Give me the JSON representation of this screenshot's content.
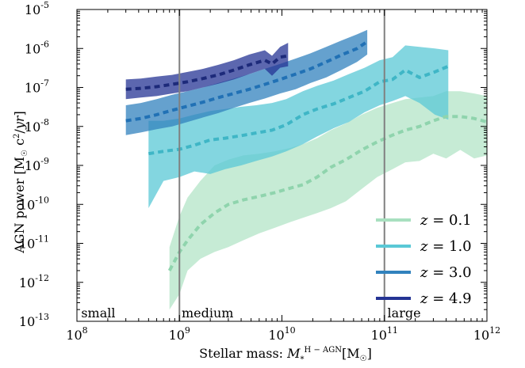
{
  "chart_data": {
    "type": "area",
    "xlabel": "Stellar mass: M*^{H−AGN} [M☉]",
    "ylabel": "AGN power [M☉ c²/yr]",
    "x_scale": "log",
    "y_scale": "log",
    "xlim": [
      100000000.0,
      1000000000000.0
    ],
    "ylim": [
      1e-13,
      1e-05
    ],
    "x_ticks": [
      {
        "value": 100000000.0,
        "base": "10",
        "exp": "8"
      },
      {
        "value": 1000000000.0,
        "base": "10",
        "exp": "9"
      },
      {
        "value": 10000000000.0,
        "base": "10",
        "exp": "10"
      },
      {
        "value": 100000000000.0,
        "base": "10",
        "exp": "11"
      },
      {
        "value": 1000000000000.0,
        "base": "10",
        "exp": "12"
      }
    ],
    "y_ticks": [
      {
        "value": 1e-13,
        "base": "10",
        "exp": "-13"
      },
      {
        "value": 1e-12,
        "base": "10",
        "exp": "-12"
      },
      {
        "value": 1e-11,
        "base": "10",
        "exp": "-11"
      },
      {
        "value": 1e-10,
        "base": "10",
        "exp": "-10"
      },
      {
        "value": 1e-09,
        "base": "10",
        "exp": "-9"
      },
      {
        "value": 1e-08,
        "base": "10",
        "exp": "-8"
      },
      {
        "value": 1e-07,
        "base": "10",
        "exp": "-7"
      },
      {
        "value": 1e-06,
        "base": "10",
        "exp": "-6"
      },
      {
        "value": 1e-05,
        "base": "10",
        "exp": "-5"
      }
    ],
    "vlines": [
      1000000000.0,
      100000000000.0
    ],
    "region_labels": [
      {
        "text": "small",
        "x": 110000000.0
      },
      {
        "text": "medium",
        "x": 1050000000.0
      },
      {
        "text": "large",
        "x": 107000000000.0
      }
    ],
    "legend_placement": "lower-right",
    "series": [
      {
        "name": "z = 0.1",
        "color": "#a8e0bf",
        "x": [
          800000000.0,
          1000000000.0,
          1200000000.0,
          1600000000.0,
          2200000000.0,
          3000000000.0,
          4200000000.0,
          6000000000.0,
          8500000000.0,
          12000000000.0,
          16000000000.0,
          22000000000.0,
          30000000000.0,
          42000000000.0,
          60000000000.0,
          85000000000.0,
          120000000000.0,
          160000000000.0,
          220000000000.0,
          300000000000.0,
          400000000000.0,
          550000000000.0,
          750000000000.0,
          1000000000000.0
        ],
        "y": [
          2e-12,
          6e-12,
          1.2e-11,
          3e-11,
          6e-11,
          1e-10,
          1.3e-10,
          1.6e-10,
          2e-10,
          2.6e-10,
          3.2e-10,
          5e-10,
          9e-10,
          1.4e-09,
          2.5e-09,
          4e-09,
          6e-09,
          8e-09,
          1e-08,
          1.4e-08,
          1.8e-08,
          1.8e-08,
          1.6e-08,
          1.3e-08
        ],
        "lower": [
          2e-13,
          5e-13,
          2e-12,
          4e-12,
          6e-12,
          8e-12,
          1.2e-11,
          1.8e-11,
          2.5e-11,
          3.5e-11,
          4.5e-11,
          6e-11,
          8e-11,
          1.2e-10,
          2.5e-10,
          5e-10,
          8e-10,
          1.2e-09,
          1.3e-09,
          2e-09,
          1.5e-09,
          2.5e-09,
          1.5e-09,
          1.8e-09
        ],
        "upper": [
          8e-12,
          5e-11,
          1.5e-10,
          4e-10,
          1e-09,
          1.4e-09,
          1.8e-09,
          2e-09,
          2.3e-09,
          2.8e-09,
          3.5e-09,
          5e-09,
          8e-09,
          1.2e-08,
          2e-08,
          3e-08,
          4e-08,
          5e-08,
          5.5e-08,
          6e-08,
          8e-08,
          8e-08,
          7e-08,
          6e-08
        ]
      },
      {
        "name": "z = 1.0",
        "color": "#5ac8d6",
        "x": [
          500000000.0,
          700000000.0,
          1000000000.0,
          1400000000.0,
          2000000000.0,
          2800000000.0,
          4000000000.0,
          5600000000.0,
          8000000000.0,
          11000000000.0,
          16000000000.0,
          22000000000.0,
          32000000000.0,
          45000000000.0,
          64000000000.0,
          90000000000.0,
          120000000000.0,
          160000000000.0,
          220000000000.0,
          310000000000.0,
          420000000000.0
        ],
        "y": [
          2e-09,
          2.3e-09,
          2.6e-09,
          3.3e-09,
          4.5e-09,
          5e-09,
          5.8e-09,
          6.8e-09,
          8e-09,
          1.1e-08,
          2e-08,
          2.8e-08,
          3.8e-08,
          5.5e-08,
          8e-08,
          1.4e-07,
          1.6e-07,
          2.8e-07,
          1.8e-07,
          2.5e-07,
          3.5e-07
        ],
        "lower": [
          8e-11,
          4e-10,
          5e-10,
          7e-10,
          6e-10,
          8e-10,
          1e-09,
          1.3e-09,
          1.7e-09,
          2.3e-09,
          3.5e-09,
          5.5e-09,
          9e-09,
          1.3e-08,
          2.3e-08,
          3.5e-08,
          4.5e-08,
          6e-08,
          4e-08,
          2e-08,
          1.5e-08
        ],
        "upper": [
          1.4e-08,
          1.4e-08,
          1.6e-08,
          2e-08,
          2.5e-08,
          2.8e-08,
          3.2e-08,
          3.5e-08,
          4e-08,
          5e-08,
          8e-08,
          1.1e-07,
          1.5e-07,
          2.2e-07,
          3.2e-07,
          5e-07,
          6e-07,
          1.2e-06,
          1.1e-06,
          1e-06,
          9e-07
        ]
      },
      {
        "name": "z = 3.0",
        "color": "#3182bd",
        "x": [
          300000000.0,
          420000000.0,
          600000000.0,
          850000000.0,
          1200000000.0,
          1700000000.0,
          2400000000.0,
          3400000000.0,
          4800000000.0,
          6800000000.0,
          9600000000.0,
          13600000000.0,
          19000000000.0,
          27000000000.0,
          38000000000.0,
          54000000000.0,
          68000000000.0
        ],
        "y": [
          1.4e-08,
          1.6e-08,
          2e-08,
          2.6e-08,
          3.3e-08,
          4.2e-08,
          5.5e-08,
          7e-08,
          9e-08,
          1.2e-07,
          1.6e-07,
          2.2e-07,
          3e-07,
          4.5e-07,
          6.8e-07,
          1e-06,
          1.5e-06
        ],
        "lower": [
          6e-09,
          7e-09,
          8.5e-09,
          1e-08,
          1.3e-08,
          1.7e-08,
          2.2e-08,
          3e-08,
          4e-08,
          5.2e-08,
          7e-08,
          9e-08,
          1.3e-07,
          1.8e-07,
          2.8e-07,
          4.5e-07,
          7e-07
        ],
        "upper": [
          3.5e-08,
          4e-08,
          5e-08,
          6.5e-08,
          8e-08,
          1e-07,
          1.3e-07,
          1.7e-07,
          2.2e-07,
          3e-07,
          4e-07,
          5.5e-07,
          7.5e-07,
          1.1e-06,
          1.6e-06,
          2.3e-06,
          3e-06
        ]
      },
      {
        "name": "z = 4.9",
        "color": "#253494",
        "x": [
          300000000.0,
          420000000.0,
          600000000.0,
          850000000.0,
          1200000000.0,
          1700000000.0,
          2400000000.0,
          3400000000.0,
          4800000000.0,
          6800000000.0,
          8000000000.0,
          9600000000.0,
          11500000000.0
        ],
        "y": [
          9e-08,
          9.5e-08,
          1.05e-07,
          1.2e-07,
          1.4e-07,
          1.7e-07,
          2.1e-07,
          2.8e-07,
          3.8e-07,
          5e-07,
          4e-07,
          6e-07,
          6.5e-07
        ],
        "lower": [
          5e-08,
          5.5e-08,
          6e-08,
          7e-08,
          8e-08,
          1e-07,
          1.25e-07,
          1.6e-07,
          2.2e-07,
          3e-07,
          2e-07,
          3.2e-07,
          3.5e-07
        ],
        "upper": [
          1.6e-07,
          1.7e-07,
          1.9e-07,
          2.1e-07,
          2.5e-07,
          3e-07,
          3.8e-07,
          5e-07,
          7e-07,
          9e-07,
          6.5e-07,
          1.1e-06,
          1.4e-06
        ]
      }
    ],
    "legend": [
      {
        "prefix": "z",
        "value": "0.1",
        "color": "#a8e0bf"
      },
      {
        "prefix": "z",
        "value": "1.0",
        "color": "#5ac8d6"
      },
      {
        "prefix": "z",
        "value": "3.0",
        "color": "#3182bd"
      },
      {
        "prefix": "z",
        "value": "4.9",
        "color": "#253494"
      }
    ]
  }
}
